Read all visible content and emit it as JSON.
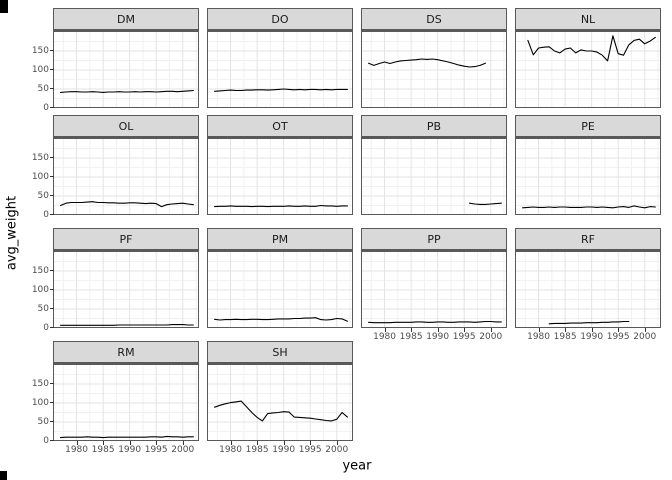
{
  "figure": {
    "ylabel": "avg_weight",
    "xlabel": "year",
    "colors": {
      "background": "#FFFFFF",
      "strip_background": "#D9D9D9",
      "panel_border": "#595959",
      "grid_major": "#E3E3E3",
      "grid_minor": "#F1F1F1",
      "line": "#000000",
      "tick_label": "#4D4D4D",
      "axis_title": "#000000"
    }
  },
  "chart_data": {
    "type": "line",
    "title": "",
    "xlabel": "year",
    "ylabel": "avg_weight",
    "legend": "none",
    "grid": "on",
    "x_ticks": [
      1980,
      1985,
      1990,
      1995,
      2000
    ],
    "y_ticks": [
      0,
      50,
      100,
      150
    ],
    "x_minor_ticks": [
      1977.5,
      1982.5,
      1987.5,
      1992.5,
      1997.5,
      2002.5
    ],
    "y_minor_ticks": [
      25,
      75,
      125,
      175
    ],
    "x_range": [
      1975.75,
      2003.25
    ],
    "y_range": [
      0,
      200
    ],
    "facet_layout": {
      "rows": 4,
      "cols": 4,
      "order": "row-major"
    },
    "facets": [
      {
        "label": "DM",
        "start_year": 1977,
        "values": [
          41,
          42,
          43,
          43,
          42,
          42,
          43,
          42,
          41,
          42,
          42,
          43,
          42,
          42,
          43,
          42,
          43,
          43,
          42,
          43,
          44,
          44,
          43,
          44,
          45,
          46
        ]
      },
      {
        "label": "DO",
        "start_year": 1977,
        "values": [
          44,
          45,
          46,
          47,
          46,
          46,
          47,
          47,
          48,
          48,
          47,
          48,
          49,
          50,
          49,
          48,
          49,
          48,
          49,
          49,
          48,
          49,
          48,
          49,
          49,
          49
        ]
      },
      {
        "label": "DS",
        "start_year": 1977,
        "values": [
          118,
          112,
          117,
          121,
          117,
          121,
          124,
          125,
          126,
          127,
          129,
          128,
          129,
          127,
          124,
          121,
          117,
          113,
          110,
          108,
          109,
          112,
          118
        ]
      },
      {
        "label": "NL",
        "start_year": 1978,
        "values": [
          178,
          140,
          158,
          160,
          161,
          150,
          145,
          155,
          158,
          145,
          153,
          150,
          150,
          147,
          139,
          124,
          190,
          143,
          139,
          166,
          178,
          181,
          169,
          176,
          186
        ]
      },
      {
        "label": "OL",
        "start_year": 1977,
        "values": [
          25,
          31,
          33,
          33,
          33,
          34,
          35,
          33,
          33,
          32,
          32,
          31,
          31,
          32,
          32,
          31,
          30,
          31,
          30,
          22,
          27,
          29,
          30,
          31,
          29,
          27
        ]
      },
      {
        "label": "OT",
        "start_year": 1977,
        "values": [
          22,
          23,
          23,
          24,
          23,
          23,
          23,
          22,
          23,
          23,
          22,
          23,
          23,
          23,
          24,
          23,
          23,
          24,
          23,
          23,
          25,
          24,
          24,
          23,
          24,
          24
        ]
      },
      {
        "label": "PB",
        "start_year": 1996,
        "values": [
          31,
          29,
          28,
          28,
          29,
          30,
          31
        ]
      },
      {
        "label": "PE",
        "start_year": 1977,
        "values": [
          19,
          20,
          21,
          20,
          20,
          21,
          20,
          21,
          21,
          20,
          20,
          20,
          21,
          21,
          20,
          21,
          20,
          19,
          21,
          22,
          20,
          24,
          21,
          19,
          22,
          21
        ]
      },
      {
        "label": "PF",
        "start_year": 1977,
        "values": [
          7,
          7,
          7,
          7,
          7,
          7,
          7,
          7,
          7,
          7,
          7,
          8,
          8,
          8,
          8,
          8,
          8,
          8,
          8,
          8,
          8,
          9,
          9,
          9,
          8,
          8
        ]
      },
      {
        "label": "PM",
        "start_year": 1977,
        "values": [
          23,
          21,
          22,
          22,
          23,
          22,
          22,
          23,
          23,
          22,
          22,
          23,
          24,
          24,
          24,
          25,
          25,
          26,
          26,
          27,
          22,
          21,
          22,
          25,
          24,
          18
        ]
      },
      {
        "label": "PP",
        "start_year": 1977,
        "values": [
          15,
          14,
          14,
          14,
          14,
          15,
          15,
          15,
          15,
          16,
          16,
          15,
          15,
          16,
          16,
          15,
          15,
          16,
          16,
          16,
          15,
          16,
          17,
          17,
          16,
          16
        ]
      },
      {
        "label": "RF",
        "start_year": 1982,
        "values": [
          11,
          12,
          12,
          12,
          13,
          13,
          13,
          14,
          14,
          14,
          15,
          15,
          16,
          16,
          17,
          17
        ]
      },
      {
        "label": "RM",
        "start_year": 1977,
        "values": [
          9,
          10,
          10,
          10,
          10,
          11,
          10,
          10,
          9,
          10,
          10,
          10,
          10,
          10,
          10,
          10,
          10,
          11,
          11,
          10,
          12,
          11,
          11,
          10,
          11,
          11
        ]
      },
      {
        "label": "SH",
        "start_year": 1977,
        "values": [
          89,
          94,
          98,
          101,
          103,
          105,
          90,
          75,
          62,
          53,
          72,
          74,
          75,
          77,
          76,
          63,
          62,
          61,
          60,
          58,
          56,
          54,
          53,
          57,
          75,
          63
        ]
      }
    ]
  }
}
